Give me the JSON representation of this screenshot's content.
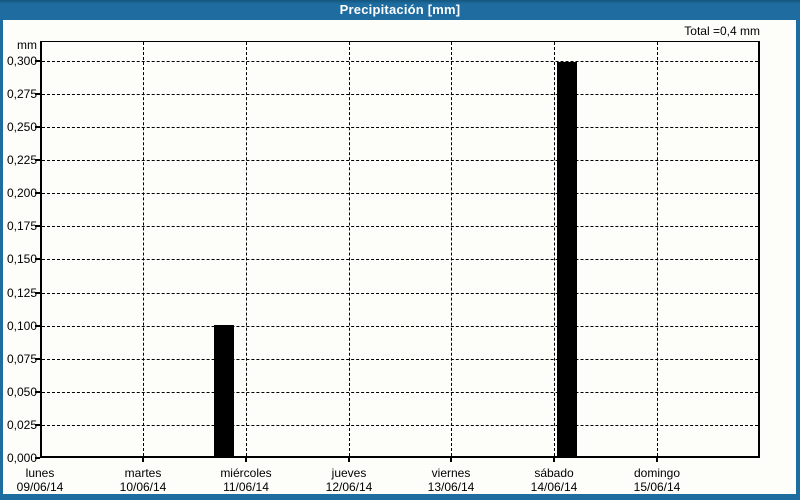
{
  "window": {
    "title": "Precipitación [mm]"
  },
  "colors": {
    "frame_blue": "#1E6CA0",
    "title_text": "#FFFFFF",
    "background": "#FDFDFA",
    "axis": "#000000",
    "bar": "#000000"
  },
  "chart_data": {
    "type": "bar",
    "title": "Precipitación [mm]",
    "ylabel": "mm",
    "xlabel": "",
    "ylim": [
      0,
      0.315
    ],
    "ytick_step": 0.025,
    "grid": "dashed",
    "legend": "none",
    "bar_color": "#000000",
    "total": 0.4,
    "total_label": "Total =0,4 mm",
    "yticks": [
      {
        "value": 0.3,
        "label": "0,300"
      },
      {
        "value": 0.275,
        "label": "0,275"
      },
      {
        "value": 0.25,
        "label": "0,250"
      },
      {
        "value": 0.225,
        "label": "0,225"
      },
      {
        "value": 0.2,
        "label": "0,200"
      },
      {
        "value": 0.175,
        "label": "0,175"
      },
      {
        "value": 0.15,
        "label": "0,150"
      },
      {
        "value": 0.125,
        "label": "0,125"
      },
      {
        "value": 0.1,
        "label": "0,100"
      },
      {
        "value": 0.075,
        "label": "0,075"
      },
      {
        "value": 0.05,
        "label": "0,050"
      },
      {
        "value": 0.025,
        "label": "0,025"
      },
      {
        "value": 0.0,
        "label": "0,000"
      }
    ],
    "categories": [
      {
        "day": "lunes",
        "date": "09/06/14"
      },
      {
        "day": "martes",
        "date": "10/06/14"
      },
      {
        "day": "miércoles",
        "date": "11/06/14"
      },
      {
        "day": "jueves",
        "date": "12/06/14"
      },
      {
        "day": "viernes",
        "date": "13/06/14"
      },
      {
        "day": "sábado",
        "date": "14/06/14"
      },
      {
        "day": "domingo",
        "date": "15/06/14"
      }
    ],
    "values": [
      0,
      0,
      0.1,
      0,
      0,
      0.3,
      0
    ],
    "bars": [
      {
        "value": 0.1,
        "value_label": "0,100",
        "nearest_day": "miércoles 11/06/14",
        "x_frac": 0.2417,
        "width_frac": 0.0278
      },
      {
        "value": 0.3,
        "value_label": "0,300",
        "nearest_day": "sábado 14/06/14",
        "x_frac": 0.7181,
        "width_frac": 0.0278
      }
    ]
  }
}
